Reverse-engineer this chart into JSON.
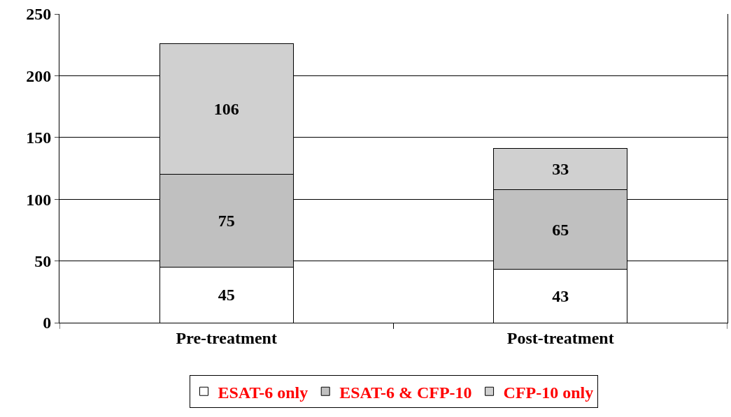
{
  "chart_data": {
    "type": "bar",
    "stacked": true,
    "categories": [
      "Pre-treatment",
      "Post-treatment"
    ],
    "series": [
      {
        "name": "ESAT-6 only",
        "color": "#ffffff",
        "values": [
          45,
          43
        ]
      },
      {
        "name": "ESAT-6 & CFP-10",
        "color": "#c0c0c0",
        "values": [
          75,
          65
        ]
      },
      {
        "name": "CFP-10 only",
        "color": "#d0d0d0",
        "values": [
          106,
          33
        ]
      }
    ],
    "ylim": [
      0,
      250
    ],
    "yticks": [
      0,
      50,
      100,
      150,
      200,
      250
    ],
    "grid": "y",
    "legend": "bottom",
    "data_labels": true
  }
}
